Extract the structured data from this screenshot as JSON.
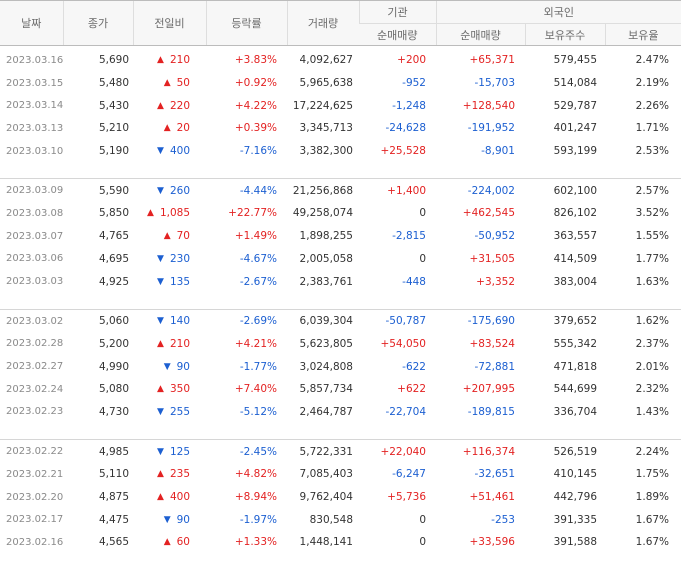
{
  "headers": {
    "date": "날짜",
    "close": "종가",
    "diff": "전일비",
    "rate": "등락률",
    "volume": "거래량",
    "institution_group": "기관",
    "institution_net": "순매매량",
    "foreign_group": "외국인",
    "foreign_net": "순매매량",
    "foreign_hold": "보유주수",
    "foreign_ratio": "보유율"
  },
  "arrows": {
    "up": "▲",
    "down": "▼"
  },
  "colors": {
    "up": "#e32222",
    "down": "#1c5fd1",
    "header_bg": "#f7f7f7"
  },
  "rows": [
    {
      "date": "2023.03.16",
      "close": "5,690",
      "dir": "up",
      "diff": "210",
      "rate": "+3.83%",
      "volume": "4,092,627",
      "inst": "+200",
      "fnet": "+65,371",
      "hold": "579,455",
      "ratio": "2.47%"
    },
    {
      "date": "2023.03.15",
      "close": "5,480",
      "dir": "up",
      "diff": "50",
      "rate": "+0.92%",
      "volume": "5,965,638",
      "inst": "-952",
      "fnet": "-15,703",
      "hold": "514,084",
      "ratio": "2.19%"
    },
    {
      "date": "2023.03.14",
      "close": "5,430",
      "dir": "up",
      "diff": "220",
      "rate": "+4.22%",
      "volume": "17,224,625",
      "inst": "-1,248",
      "fnet": "+128,540",
      "hold": "529,787",
      "ratio": "2.26%"
    },
    {
      "date": "2023.03.13",
      "close": "5,210",
      "dir": "up",
      "diff": "20",
      "rate": "+0.39%",
      "volume": "3,345,713",
      "inst": "-24,628",
      "fnet": "-191,952",
      "hold": "401,247",
      "ratio": "1.71%"
    },
    {
      "date": "2023.03.10",
      "close": "5,190",
      "dir": "down",
      "diff": "400",
      "rate": "-7.16%",
      "volume": "3,382,300",
      "inst": "+25,528",
      "fnet": "-8,901",
      "hold": "593,199",
      "ratio": "2.53%"
    },
    {
      "date": "2023.03.09",
      "close": "5,590",
      "dir": "down",
      "diff": "260",
      "rate": "-4.44%",
      "volume": "21,256,868",
      "inst": "+1,400",
      "fnet": "-224,002",
      "hold": "602,100",
      "ratio": "2.57%"
    },
    {
      "date": "2023.03.08",
      "close": "5,850",
      "dir": "up",
      "diff": "1,085",
      "rate": "+22.77%",
      "volume": "49,258,074",
      "inst": "0",
      "fnet": "+462,545",
      "hold": "826,102",
      "ratio": "3.52%"
    },
    {
      "date": "2023.03.07",
      "close": "4,765",
      "dir": "up",
      "diff": "70",
      "rate": "+1.49%",
      "volume": "1,898,255",
      "inst": "-2,815",
      "fnet": "-50,952",
      "hold": "363,557",
      "ratio": "1.55%"
    },
    {
      "date": "2023.03.06",
      "close": "4,695",
      "dir": "down",
      "diff": "230",
      "rate": "-4.67%",
      "volume": "2,005,058",
      "inst": "0",
      "fnet": "+31,505",
      "hold": "414,509",
      "ratio": "1.77%"
    },
    {
      "date": "2023.03.03",
      "close": "4,925",
      "dir": "down",
      "diff": "135",
      "rate": "-2.67%",
      "volume": "2,383,761",
      "inst": "-448",
      "fnet": "+3,352",
      "hold": "383,004",
      "ratio": "1.63%"
    },
    {
      "date": "2023.03.02",
      "close": "5,060",
      "dir": "down",
      "diff": "140",
      "rate": "-2.69%",
      "volume": "6,039,304",
      "inst": "-50,787",
      "fnet": "-175,690",
      "hold": "379,652",
      "ratio": "1.62%"
    },
    {
      "date": "2023.02.28",
      "close": "5,200",
      "dir": "up",
      "diff": "210",
      "rate": "+4.21%",
      "volume": "5,623,805",
      "inst": "+54,050",
      "fnet": "+83,524",
      "hold": "555,342",
      "ratio": "2.37%"
    },
    {
      "date": "2023.02.27",
      "close": "4,990",
      "dir": "down",
      "diff": "90",
      "rate": "-1.77%",
      "volume": "3,024,808",
      "inst": "-622",
      "fnet": "-72,881",
      "hold": "471,818",
      "ratio": "2.01%"
    },
    {
      "date": "2023.02.24",
      "close": "5,080",
      "dir": "up",
      "diff": "350",
      "rate": "+7.40%",
      "volume": "5,857,734",
      "inst": "+622",
      "fnet": "+207,995",
      "hold": "544,699",
      "ratio": "2.32%"
    },
    {
      "date": "2023.02.23",
      "close": "4,730",
      "dir": "down",
      "diff": "255",
      "rate": "-5.12%",
      "volume": "2,464,787",
      "inst": "-22,704",
      "fnet": "-189,815",
      "hold": "336,704",
      "ratio": "1.43%"
    },
    {
      "date": "2023.02.22",
      "close": "4,985",
      "dir": "down",
      "diff": "125",
      "rate": "-2.45%",
      "volume": "5,722,331",
      "inst": "+22,040",
      "fnet": "+116,374",
      "hold": "526,519",
      "ratio": "2.24%"
    },
    {
      "date": "2023.02.21",
      "close": "5,110",
      "dir": "up",
      "diff": "235",
      "rate": "+4.82%",
      "volume": "7,085,403",
      "inst": "-6,247",
      "fnet": "-32,651",
      "hold": "410,145",
      "ratio": "1.75%"
    },
    {
      "date": "2023.02.20",
      "close": "4,875",
      "dir": "up",
      "diff": "400",
      "rate": "+8.94%",
      "volume": "9,762,404",
      "inst": "+5,736",
      "fnet": "+51,461",
      "hold": "442,796",
      "ratio": "1.89%"
    },
    {
      "date": "2023.02.17",
      "close": "4,475",
      "dir": "down",
      "diff": "90",
      "rate": "-1.97%",
      "volume": "830,548",
      "inst": "0",
      "fnet": "-253",
      "hold": "391,335",
      "ratio": "1.67%"
    },
    {
      "date": "2023.02.16",
      "close": "4,565",
      "dir": "up",
      "diff": "60",
      "rate": "+1.33%",
      "volume": "1,448,141",
      "inst": "0",
      "fnet": "+33,596",
      "hold": "391,588",
      "ratio": "1.67%"
    }
  ]
}
